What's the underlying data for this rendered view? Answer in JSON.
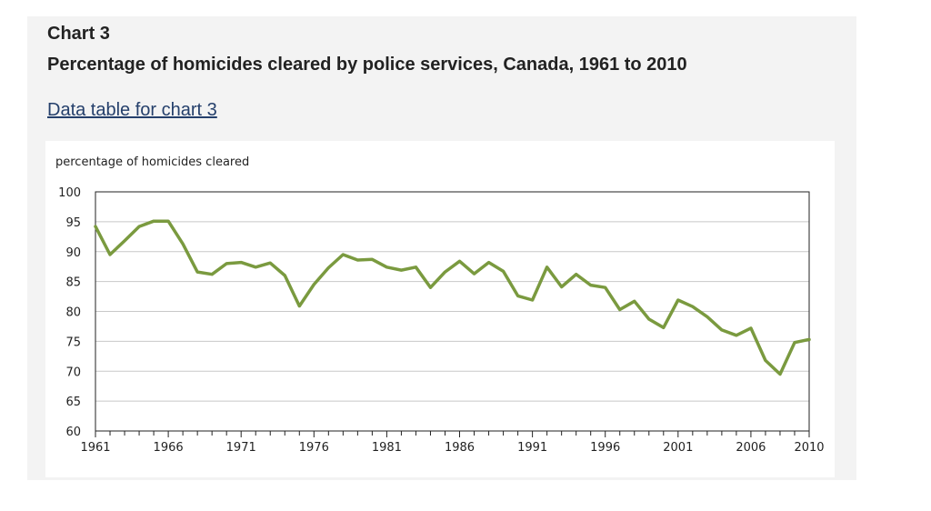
{
  "header": {
    "chart_number": "Chart 3",
    "title": "Percentage of homicides cleared by police services, Canada, 1961 to 2010",
    "data_link": "Data table for chart 3"
  },
  "colors": {
    "line": "#7a9a3f",
    "grid": "#c8c8c8",
    "axis": "#222222",
    "link": "#243f6b"
  },
  "chart_data": {
    "type": "line",
    "title": "Percentage of homicides cleared by police services, Canada, 1961 to 2010",
    "ylabel": "percentage of homicides cleared",
    "xlabel": "",
    "ylim": [
      60,
      100
    ],
    "yticks": [
      60,
      65,
      70,
      75,
      80,
      85,
      90,
      95,
      100
    ],
    "xlim": [
      1961,
      2010
    ],
    "xticks": [
      1961,
      1966,
      1971,
      1976,
      1981,
      1986,
      1991,
      1996,
      2001,
      2006,
      2010
    ],
    "grid": true,
    "series": [
      {
        "name": "Percentage of homicides cleared",
        "x": [
          1961,
          1962,
          1963,
          1964,
          1965,
          1966,
          1967,
          1968,
          1969,
          1970,
          1971,
          1972,
          1973,
          1974,
          1975,
          1976,
          1977,
          1978,
          1979,
          1980,
          1981,
          1982,
          1983,
          1984,
          1985,
          1986,
          1987,
          1988,
          1989,
          1990,
          1991,
          1992,
          1993,
          1994,
          1995,
          1996,
          1997,
          1998,
          1999,
          2000,
          2001,
          2002,
          2003,
          2004,
          2005,
          2006,
          2007,
          2008,
          2009,
          2010
        ],
        "values": [
          94.2,
          89.5,
          91.8,
          94.2,
          95.1,
          95.1,
          91.3,
          86.6,
          86.2,
          88.0,
          88.2,
          87.4,
          88.1,
          86.0,
          80.9,
          84.5,
          87.3,
          89.5,
          88.6,
          88.7,
          87.4,
          86.9,
          87.4,
          84.0,
          86.6,
          88.4,
          86.3,
          88.2,
          86.7,
          82.6,
          81.9,
          87.4,
          84.1,
          86.2,
          84.4,
          84.0,
          80.3,
          81.7,
          78.7,
          77.3,
          81.9,
          80.8,
          79.1,
          76.9,
          76.0,
          77.2,
          71.8,
          69.5,
          74.8,
          75.3
        ]
      }
    ]
  }
}
